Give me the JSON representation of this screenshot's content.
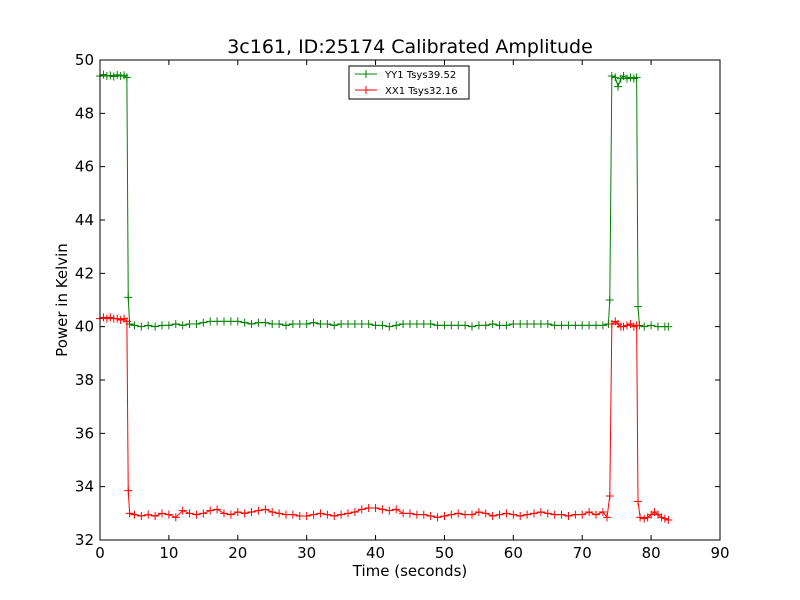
{
  "chart_data": {
    "type": "line",
    "title": "3c161, ID:25174 Calibrated Amplitude",
    "xlabel": "Time (seconds)",
    "ylabel": "Power in Kelvin",
    "xlim": [
      0,
      90
    ],
    "ylim": [
      32,
      50
    ],
    "xticks": [
      0,
      10,
      20,
      30,
      40,
      50,
      60,
      70,
      80,
      90
    ],
    "yticks": [
      32,
      34,
      36,
      38,
      40,
      42,
      44,
      46,
      48,
      50
    ],
    "grid": false,
    "legend_position": "top-center",
    "marker": "plus",
    "series": [
      {
        "name": "YY1 Tsys39.52",
        "color": "#008000",
        "points": [
          [
            0.0,
            49.4
          ],
          [
            0.5,
            49.45
          ],
          [
            1.0,
            49.4
          ],
          [
            1.5,
            49.42
          ],
          [
            2.0,
            49.38
          ],
          [
            2.5,
            49.44
          ],
          [
            3.0,
            49.4
          ],
          [
            3.5,
            49.43
          ],
          [
            3.9,
            49.35
          ],
          [
            4.1,
            41.1
          ],
          [
            4.3,
            40.1
          ],
          [
            5.0,
            40.05
          ],
          [
            6.0,
            40.0
          ],
          [
            7.0,
            40.05
          ],
          [
            8.0,
            40.0
          ],
          [
            9.0,
            40.05
          ],
          [
            10.0,
            40.05
          ],
          [
            11.0,
            40.1
          ],
          [
            12.0,
            40.05
          ],
          [
            13.0,
            40.1
          ],
          [
            14.0,
            40.1
          ],
          [
            15.0,
            40.15
          ],
          [
            16.0,
            40.2
          ],
          [
            17.0,
            40.2
          ],
          [
            18.0,
            40.2
          ],
          [
            19.0,
            40.2
          ],
          [
            20.0,
            40.2
          ],
          [
            21.0,
            40.15
          ],
          [
            22.0,
            40.1
          ],
          [
            23.0,
            40.15
          ],
          [
            24.0,
            40.15
          ],
          [
            25.0,
            40.1
          ],
          [
            26.0,
            40.1
          ],
          [
            27.0,
            40.05
          ],
          [
            28.0,
            40.1
          ],
          [
            29.0,
            40.1
          ],
          [
            30.0,
            40.1
          ],
          [
            31.0,
            40.15
          ],
          [
            32.0,
            40.1
          ],
          [
            33.0,
            40.1
          ],
          [
            34.0,
            40.05
          ],
          [
            35.0,
            40.1
          ],
          [
            36.0,
            40.1
          ],
          [
            37.0,
            40.1
          ],
          [
            38.0,
            40.1
          ],
          [
            39.0,
            40.1
          ],
          [
            40.0,
            40.05
          ],
          [
            41.0,
            40.05
          ],
          [
            42.0,
            40.0
          ],
          [
            43.0,
            40.05
          ],
          [
            44.0,
            40.1
          ],
          [
            45.0,
            40.1
          ],
          [
            46.0,
            40.1
          ],
          [
            47.0,
            40.1
          ],
          [
            48.0,
            40.1
          ],
          [
            49.0,
            40.05
          ],
          [
            50.0,
            40.05
          ],
          [
            51.0,
            40.05
          ],
          [
            52.0,
            40.05
          ],
          [
            53.0,
            40.05
          ],
          [
            54.0,
            40.0
          ],
          [
            55.0,
            40.05
          ],
          [
            56.0,
            40.05
          ],
          [
            57.0,
            40.1
          ],
          [
            58.0,
            40.05
          ],
          [
            59.0,
            40.05
          ],
          [
            60.0,
            40.1
          ],
          [
            61.0,
            40.1
          ],
          [
            62.0,
            40.1
          ],
          [
            63.0,
            40.1
          ],
          [
            64.0,
            40.1
          ],
          [
            65.0,
            40.1
          ],
          [
            66.0,
            40.05
          ],
          [
            67.0,
            40.05
          ],
          [
            68.0,
            40.05
          ],
          [
            69.0,
            40.05
          ],
          [
            70.0,
            40.05
          ],
          [
            71.0,
            40.05
          ],
          [
            72.0,
            40.05
          ],
          [
            73.0,
            40.05
          ],
          [
            73.8,
            40.1
          ],
          [
            74.0,
            41.0
          ],
          [
            74.3,
            49.4
          ],
          [
            74.8,
            49.35
          ],
          [
            75.2,
            49.0
          ],
          [
            75.6,
            49.3
          ],
          [
            76.0,
            49.4
          ],
          [
            76.5,
            49.3
          ],
          [
            77.0,
            49.35
          ],
          [
            77.5,
            49.3
          ],
          [
            77.9,
            49.35
          ],
          [
            78.1,
            40.75
          ],
          [
            78.3,
            40.05
          ],
          [
            79.0,
            40.0
          ],
          [
            80.0,
            40.05
          ],
          [
            81.0,
            40.0
          ],
          [
            82.0,
            40.0
          ],
          [
            82.5,
            40.0
          ]
        ]
      },
      {
        "name": "XX1 Tsys32.16",
        "color": "#ff0000",
        "points": [
          [
            0.0,
            40.3
          ],
          [
            0.5,
            40.35
          ],
          [
            1.0,
            40.3
          ],
          [
            1.5,
            40.35
          ],
          [
            2.0,
            40.3
          ],
          [
            2.5,
            40.3
          ],
          [
            3.0,
            40.25
          ],
          [
            3.5,
            40.3
          ],
          [
            3.9,
            40.2
          ],
          [
            4.1,
            33.85
          ],
          [
            4.3,
            33.0
          ],
          [
            5.0,
            32.95
          ],
          [
            6.0,
            32.9
          ],
          [
            7.0,
            32.95
          ],
          [
            8.0,
            32.9
          ],
          [
            9.0,
            33.0
          ],
          [
            10.0,
            32.95
          ],
          [
            11.0,
            32.85
          ],
          [
            12.0,
            33.1
          ],
          [
            13.0,
            33.0
          ],
          [
            14.0,
            32.95
          ],
          [
            15.0,
            33.0
          ],
          [
            16.0,
            33.1
          ],
          [
            17.0,
            33.15
          ],
          [
            18.0,
            33.0
          ],
          [
            19.0,
            32.95
          ],
          [
            20.0,
            33.05
          ],
          [
            21.0,
            33.0
          ],
          [
            22.0,
            33.05
          ],
          [
            23.0,
            33.1
          ],
          [
            24.0,
            33.15
          ],
          [
            25.0,
            33.05
          ],
          [
            26.0,
            33.0
          ],
          [
            27.0,
            32.95
          ],
          [
            28.0,
            32.95
          ],
          [
            29.0,
            32.9
          ],
          [
            30.0,
            32.9
          ],
          [
            31.0,
            32.95
          ],
          [
            32.0,
            33.0
          ],
          [
            33.0,
            32.95
          ],
          [
            34.0,
            32.9
          ],
          [
            35.0,
            32.95
          ],
          [
            36.0,
            33.0
          ],
          [
            37.0,
            33.05
          ],
          [
            38.0,
            33.15
          ],
          [
            39.0,
            33.2
          ],
          [
            40.0,
            33.2
          ],
          [
            41.0,
            33.15
          ],
          [
            42.0,
            33.1
          ],
          [
            43.0,
            33.15
          ],
          [
            44.0,
            33.0
          ],
          [
            45.0,
            33.0
          ],
          [
            46.0,
            32.95
          ],
          [
            47.0,
            32.95
          ],
          [
            48.0,
            32.9
          ],
          [
            49.0,
            32.85
          ],
          [
            50.0,
            32.9
          ],
          [
            51.0,
            32.95
          ],
          [
            52.0,
            33.0
          ],
          [
            53.0,
            32.95
          ],
          [
            54.0,
            32.95
          ],
          [
            55.0,
            33.05
          ],
          [
            56.0,
            33.0
          ],
          [
            57.0,
            32.9
          ],
          [
            58.0,
            32.95
          ],
          [
            59.0,
            33.0
          ],
          [
            60.0,
            32.95
          ],
          [
            61.0,
            32.9
          ],
          [
            62.0,
            32.95
          ],
          [
            63.0,
            33.0
          ],
          [
            64.0,
            33.05
          ],
          [
            65.0,
            33.0
          ],
          [
            66.0,
            32.95
          ],
          [
            67.0,
            32.95
          ],
          [
            68.0,
            32.9
          ],
          [
            69.0,
            32.95
          ],
          [
            70.0,
            32.95
          ],
          [
            71.0,
            33.05
          ],
          [
            72.0,
            32.95
          ],
          [
            73.0,
            33.05
          ],
          [
            73.6,
            32.85
          ],
          [
            74.0,
            33.65
          ],
          [
            74.3,
            40.1
          ],
          [
            74.8,
            40.2
          ],
          [
            75.2,
            40.1
          ],
          [
            75.6,
            40.0
          ],
          [
            76.0,
            40.0
          ],
          [
            76.5,
            40.05
          ],
          [
            77.0,
            40.1
          ],
          [
            77.5,
            40.0
          ],
          [
            77.9,
            40.05
          ],
          [
            78.1,
            33.45
          ],
          [
            78.4,
            32.85
          ],
          [
            79.0,
            32.8
          ],
          [
            79.5,
            32.85
          ],
          [
            80.0,
            32.95
          ],
          [
            80.5,
            33.05
          ],
          [
            81.0,
            32.95
          ],
          [
            81.5,
            32.85
          ],
          [
            82.0,
            32.8
          ],
          [
            82.5,
            32.75
          ]
        ]
      }
    ]
  }
}
